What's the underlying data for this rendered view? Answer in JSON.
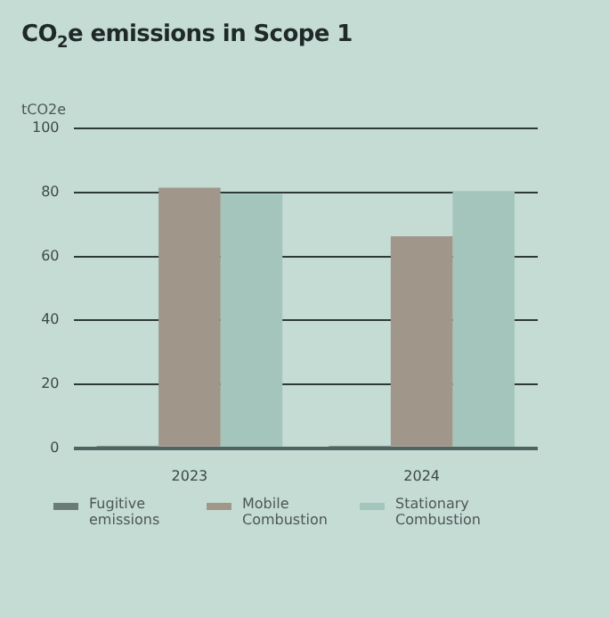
{
  "chart_data": {
    "type": "bar",
    "title": "CO$_{2}$e emissions in Scope 1",
    "ylabel": "tCO2e",
    "categories": [
      "2023",
      "2024"
    ],
    "series": [
      {
        "name": "Fugitive emissions",
        "color": "#6b7b78",
        "values": [
          0.8,
          0.8
        ]
      },
      {
        "name": "Mobile Combustion",
        "color": "#a0968a",
        "values": [
          81.5,
          66.3
        ]
      },
      {
        "name": "Stationary Combustion",
        "color": "#a3c5bb",
        "values": [
          79.5,
          80.4
        ]
      }
    ],
    "ylim": [
      0,
      100
    ],
    "yticks": [
      0,
      20,
      40,
      60,
      80,
      100
    ],
    "grid": "y",
    "legend": "bottom"
  }
}
